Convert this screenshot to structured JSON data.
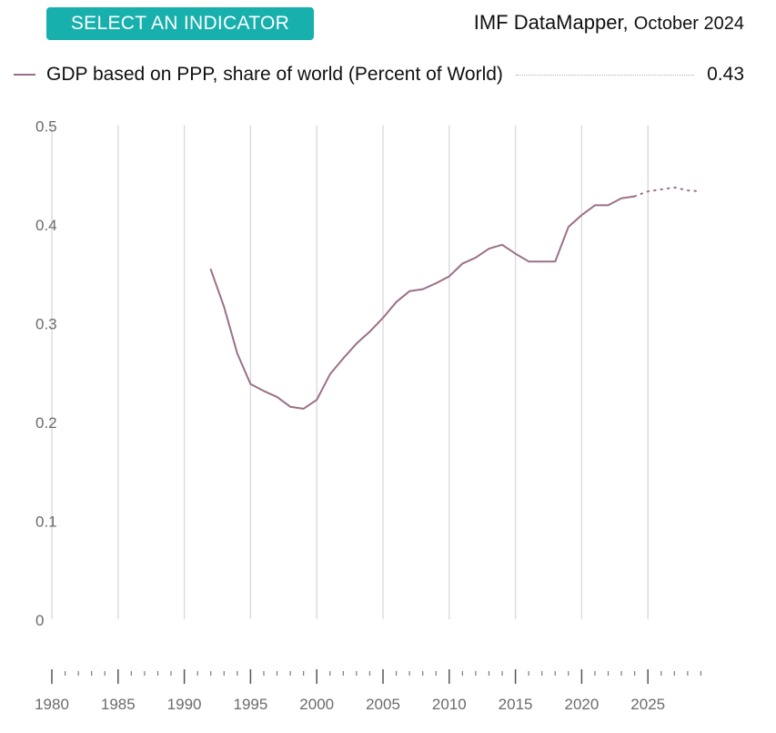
{
  "header": {
    "select_button_label": "SELECT AN INDICATOR",
    "brand_name": "IMF DataMapper,",
    "brand_date": "October 2024"
  },
  "legend": {
    "label": "GDP based on PPP, share of world (Percent of World)",
    "value": "0.43"
  },
  "colors": {
    "accent": "#17b0ad",
    "series": "#9a7088",
    "grid": "#d9d9d9",
    "axis_text": "#6b6b6b"
  },
  "chart_data": {
    "type": "line",
    "title": "",
    "xlabel": "",
    "ylabel": "",
    "xlim": [
      1980,
      2029
    ],
    "ylim": [
      0,
      0.5
    ],
    "grid": true,
    "x_ticks": [
      1980,
      1985,
      1990,
      1995,
      2000,
      2005,
      2010,
      2015,
      2020,
      2025
    ],
    "y_ticks": [
      0,
      0.1,
      0.2,
      0.3,
      0.4,
      0.5
    ],
    "y_tick_labels": [
      "0",
      "0.1",
      "0.2",
      "0.3",
      "0.4",
      "0.5"
    ],
    "series": [
      {
        "name": "GDP based on PPP, share of world (Percent of World)",
        "style": "solid",
        "x": [
          1992,
          1993,
          1994,
          1995,
          1996,
          1997,
          1998,
          1999,
          2000,
          2001,
          2002,
          2003,
          2004,
          2005,
          2006,
          2007,
          2008,
          2009,
          2010,
          2011,
          2012,
          2013,
          2014,
          2015,
          2016,
          2017,
          2018,
          2019,
          2020,
          2021,
          2022,
          2023,
          2024
        ],
        "y": [
          0.354,
          0.316,
          0.269,
          0.238,
          0.231,
          0.225,
          0.215,
          0.213,
          0.222,
          0.248,
          0.264,
          0.279,
          0.291,
          0.305,
          0.321,
          0.332,
          0.334,
          0.34,
          0.347,
          0.36,
          0.366,
          0.375,
          0.379,
          0.37,
          0.362,
          0.362,
          0.362,
          0.397,
          0.409,
          0.419,
          0.419,
          0.426,
          0.428
        ]
      },
      {
        "name": "GDP based on PPP, share of world (Percent of World) projection",
        "style": "dotted",
        "x": [
          2024,
          2025,
          2026,
          2027,
          2028,
          2029
        ],
        "y": [
          0.428,
          0.433,
          0.435,
          0.437,
          0.434,
          0.433
        ]
      }
    ]
  }
}
